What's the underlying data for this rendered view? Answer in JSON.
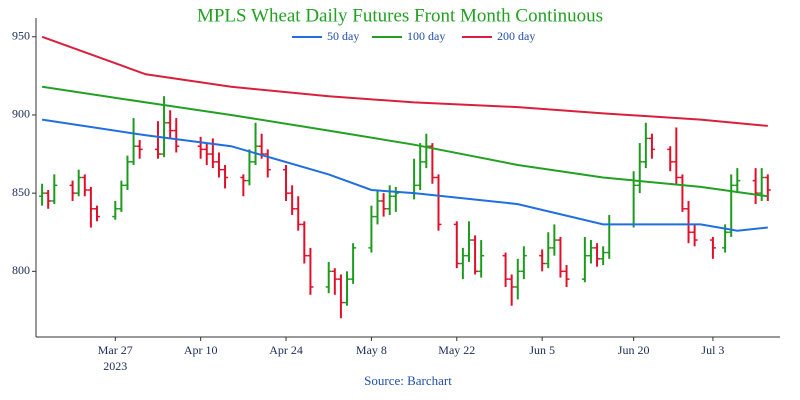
{
  "chart_data": {
    "type": "ohlc",
    "title": "MPLS Wheat Daily Futures Front Month Continuous",
    "source": "Source: Barchart",
    "x_year_label": "2023",
    "up_color": "#1e9a1e",
    "down_color": "#e0102a",
    "legend": "top",
    "xlim": [
      "2023-03-14",
      "2023-07-14"
    ],
    "xticks": [
      {
        "value": "2023-03-27",
        "label": "Mar 27"
      },
      {
        "value": "2023-04-10",
        "label": "Apr 10"
      },
      {
        "value": "2023-04-24",
        "label": "Apr 24"
      },
      {
        "value": "2023-05-08",
        "label": "May 8"
      },
      {
        "value": "2023-05-22",
        "label": "May 22"
      },
      {
        "value": "2023-06-05",
        "label": "Jun 5"
      },
      {
        "value": "2023-06-20",
        "label": "Jun 20"
      },
      {
        "value": "2023-07-03",
        "label": "Jul 3"
      }
    ],
    "ylim": [
      758,
      962
    ],
    "yticks": [
      800,
      850,
      900,
      950
    ],
    "x": [
      "2023-03-15",
      "2023-03-16",
      "2023-03-17",
      "2023-03-20",
      "2023-03-21",
      "2023-03-22",
      "2023-03-23",
      "2023-03-24",
      "2023-03-27",
      "2023-03-28",
      "2023-03-29",
      "2023-03-30",
      "2023-03-31",
      "2023-04-03",
      "2023-04-04",
      "2023-04-05",
      "2023-04-06",
      "2023-04-10",
      "2023-04-11",
      "2023-04-12",
      "2023-04-13",
      "2023-04-14",
      "2023-04-17",
      "2023-04-18",
      "2023-04-19",
      "2023-04-20",
      "2023-04-21",
      "2023-04-24",
      "2023-04-25",
      "2023-04-26",
      "2023-04-27",
      "2023-04-28",
      "2023-05-01",
      "2023-05-02",
      "2023-05-03",
      "2023-05-04",
      "2023-05-05",
      "2023-05-08",
      "2023-05-09",
      "2023-05-10",
      "2023-05-11",
      "2023-05-12",
      "2023-05-15",
      "2023-05-16",
      "2023-05-17",
      "2023-05-18",
      "2023-05-19",
      "2023-05-22",
      "2023-05-23",
      "2023-05-24",
      "2023-05-25",
      "2023-05-26",
      "2023-05-30",
      "2023-05-31",
      "2023-06-01",
      "2023-06-02",
      "2023-06-05",
      "2023-06-06",
      "2023-06-07",
      "2023-06-08",
      "2023-06-09",
      "2023-06-12",
      "2023-06-13",
      "2023-06-14",
      "2023-06-15",
      "2023-06-16",
      "2023-06-20",
      "2023-06-21",
      "2023-06-22",
      "2023-06-23",
      "2023-06-26",
      "2023-06-27",
      "2023-06-28",
      "2023-06-29",
      "2023-06-30",
      "2023-07-03",
      "2023-07-05",
      "2023-07-06",
      "2023-07-07",
      "2023-07-10",
      "2023-07-11",
      "2023-07-12"
    ],
    "ohlc": [
      [
        848,
        856,
        842,
        850
      ],
      [
        850,
        852,
        840,
        845
      ],
      [
        845,
        862,
        843,
        855
      ],
      [
        855,
        858,
        845,
        850
      ],
      [
        850,
        865,
        848,
        860
      ],
      [
        860,
        862,
        848,
        852
      ],
      [
        852,
        854,
        828,
        840
      ],
      [
        840,
        842,
        832,
        835
      ],
      [
        835,
        845,
        833,
        840
      ],
      [
        840,
        858,
        838,
        855
      ],
      [
        855,
        874,
        852,
        870
      ],
      [
        870,
        898,
        868,
        880
      ],
      [
        880,
        884,
        872,
        878
      ],
      [
        878,
        896,
        872,
        875
      ],
      [
        875,
        912,
        873,
        895
      ],
      [
        895,
        903,
        885,
        890
      ],
      [
        890,
        898,
        876,
        880
      ],
      [
        880,
        886,
        872,
        878
      ],
      [
        878,
        882,
        868,
        875
      ],
      [
        875,
        885,
        866,
        870
      ],
      [
        870,
        876,
        860,
        865
      ],
      [
        865,
        868,
        853,
        860
      ],
      [
        860,
        862,
        848,
        858
      ],
      [
        858,
        878,
        855,
        870
      ],
      [
        870,
        895,
        868,
        880
      ],
      [
        880,
        888,
        872,
        875
      ],
      [
        875,
        878,
        860,
        865
      ],
      [
        865,
        868,
        845,
        850
      ],
      [
        850,
        855,
        836,
        840
      ],
      [
        840,
        848,
        826,
        830
      ],
      [
        830,
        832,
        805,
        810
      ],
      [
        810,
        815,
        785,
        790
      ],
      [
        790,
        806,
        786,
        800
      ],
      [
        800,
        802,
        785,
        795
      ],
      [
        795,
        798,
        770,
        780
      ],
      [
        780,
        800,
        778,
        795
      ],
      [
        795,
        818,
        792,
        815
      ],
      [
        815,
        842,
        812,
        835
      ],
      [
        835,
        852,
        830,
        845
      ],
      [
        845,
        850,
        835,
        840
      ],
      [
        840,
        855,
        836,
        848
      ],
      [
        848,
        854,
        838,
        850
      ],
      [
        850,
        872,
        846,
        855
      ],
      [
        855,
        882,
        852,
        870
      ],
      [
        870,
        888,
        866,
        880
      ],
      [
        880,
        882,
        856,
        860
      ],
      [
        860,
        862,
        826,
        830
      ],
      [
        830,
        832,
        802,
        805
      ],
      [
        805,
        815,
        795,
        810
      ],
      [
        810,
        832,
        806,
        820
      ],
      [
        820,
        823,
        798,
        800
      ],
      [
        800,
        820,
        796,
        810
      ],
      [
        810,
        812,
        790,
        795
      ],
      [
        795,
        798,
        778,
        790
      ],
      [
        790,
        808,
        782,
        800
      ],
      [
        800,
        816,
        795,
        810
      ],
      [
        810,
        814,
        800,
        805
      ],
      [
        805,
        825,
        802,
        815
      ],
      [
        815,
        830,
        810,
        820
      ],
      [
        820,
        822,
        796,
        800
      ],
      [
        800,
        804,
        790,
        795
      ],
      [
        795,
        822,
        793,
        810
      ],
      [
        810,
        820,
        805,
        815
      ],
      [
        815,
        818,
        803,
        808
      ],
      [
        808,
        816,
        804,
        812
      ],
      [
        812,
        836,
        808,
        830
      ],
      [
        830,
        864,
        828,
        855
      ],
      [
        855,
        882,
        850,
        870
      ],
      [
        870,
        895,
        866,
        885
      ],
      [
        885,
        888,
        872,
        878
      ],
      [
        878,
        880,
        864,
        870
      ],
      [
        870,
        892,
        856,
        860
      ],
      [
        860,
        862,
        838,
        840
      ],
      [
        840,
        845,
        818,
        825
      ],
      [
        825,
        830,
        816,
        820
      ],
      [
        820,
        822,
        808,
        815
      ],
      [
        815,
        830,
        812,
        825
      ],
      [
        825,
        862,
        822,
        855
      ],
      [
        855,
        866,
        850,
        858
      ],
      [
        858,
        866,
        843,
        850
      ],
      [
        850,
        866,
        845,
        860
      ],
      [
        860,
        862,
        845,
        852
      ]
    ],
    "series": [
      {
        "name": "50 day",
        "color": "#1f6fe0",
        "x": [
          "2023-03-15",
          "2023-04-01",
          "2023-04-15",
          "2023-05-01",
          "2023-05-08",
          "2023-05-15",
          "2023-06-01",
          "2023-06-15",
          "2023-06-22",
          "2023-07-01",
          "2023-07-07",
          "2023-07-12"
        ],
        "values": [
          897,
          887,
          880,
          862,
          852,
          850,
          843,
          830,
          830,
          830,
          826,
          828
        ]
      },
      {
        "name": "100 day",
        "color": "#22a022",
        "x": [
          "2023-03-15",
          "2023-04-01",
          "2023-04-15",
          "2023-05-01",
          "2023-05-15",
          "2023-06-01",
          "2023-06-15",
          "2023-07-01",
          "2023-07-12"
        ],
        "values": [
          918,
          908,
          900,
          890,
          881,
          868,
          860,
          854,
          848
        ]
      },
      {
        "name": "200 day",
        "color": "#d8203c",
        "x": [
          "2023-03-15",
          "2023-04-01",
          "2023-04-15",
          "2023-05-01",
          "2023-05-15",
          "2023-06-01",
          "2023-06-15",
          "2023-07-01",
          "2023-07-12"
        ],
        "values": [
          950,
          926,
          918,
          912,
          908,
          905,
          901,
          897,
          893
        ]
      }
    ]
  }
}
